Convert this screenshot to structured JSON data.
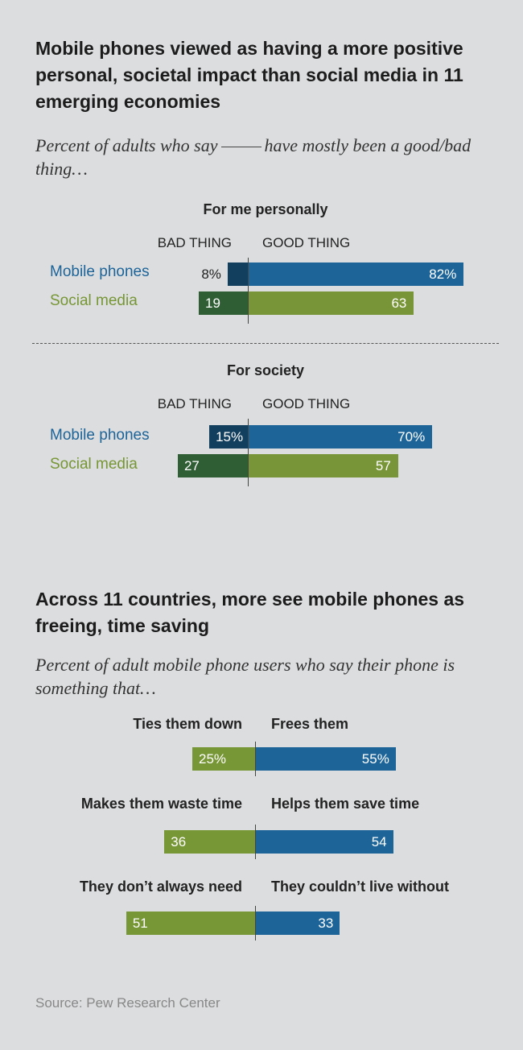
{
  "header": {
    "title": "Mobile phones viewed as having a more positive personal, societal impact than social media in 11 emerging economies",
    "subtitle_pre": "Percent of adults who say",
    "subtitle_post": "have mostly been a good/bad thing…"
  },
  "colors": {
    "phone_good": "#1d6499",
    "phone_bad": "#133f5e",
    "social_good": "#789537",
    "social_bad": "#2f5e35",
    "green_light": "#779636",
    "blue": "#1d6499"
  },
  "impact_labels": {
    "bad": "BAD THING",
    "good": "GOOD THING"
  },
  "section2": {
    "title": "Across 11 countries, more see mobile phones as freeing, time saving",
    "subtitle": "Percent of adult mobile phone users who say their phone is something that…"
  },
  "source": "Source: Pew Research Center",
  "chart_data": [
    {
      "type": "bar",
      "orientation": "horizontal-diverging",
      "title": "For me personally",
      "axis_labels": [
        "BAD THING",
        "GOOD THING"
      ],
      "categories": [
        "Mobile phones",
        "Social media"
      ],
      "series": [
        {
          "name": "BAD THING",
          "values": [
            8,
            19
          ],
          "labels": [
            "8%",
            "19"
          ]
        },
        {
          "name": "GOOD THING",
          "values": [
            82,
            63
          ],
          "labels": [
            "82%",
            "63"
          ]
        }
      ]
    },
    {
      "type": "bar",
      "orientation": "horizontal-diverging",
      "title": "For society",
      "axis_labels": [
        "BAD THING",
        "GOOD THING"
      ],
      "categories": [
        "Mobile phones",
        "Social media"
      ],
      "series": [
        {
          "name": "BAD THING",
          "values": [
            15,
            27
          ],
          "labels": [
            "15%",
            "27"
          ]
        },
        {
          "name": "GOOD THING",
          "values": [
            70,
            57
          ],
          "labels": [
            "70%",
            "57"
          ]
        }
      ]
    },
    {
      "type": "bar",
      "orientation": "horizontal-diverging",
      "pairs": [
        {
          "left": "Ties them down",
          "right": "Frees them",
          "left_value": 25,
          "right_value": 55,
          "left_label": "25%",
          "right_label": "55%"
        },
        {
          "left": "Makes them waste time",
          "right": "Helps them save time",
          "left_value": 36,
          "right_value": 54,
          "left_label": "36",
          "right_label": "54"
        },
        {
          "left": "They don’t always need",
          "right": "They couldn’t live without",
          "left_value": 51,
          "right_value": 33,
          "left_label": "51",
          "right_label": "33"
        }
      ]
    }
  ]
}
